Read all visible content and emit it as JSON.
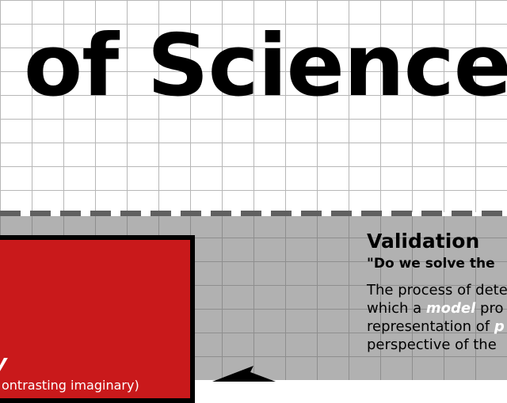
{
  "header": {
    "title": "of Science"
  },
  "red_panel": {
    "letter": "y",
    "subtitle": "ontrasting imaginary)"
  },
  "validation": {
    "title": "Validation",
    "question": "\"Do we solve the",
    "line1": "The process of dete",
    "line2_pre": "which a ",
    "line2_highlight": "model",
    "line2_post": " pro",
    "line3_pre": "representation of ",
    "line3_highlight": "p",
    "line4": "perspective of the"
  },
  "colors": {
    "red_panel": "#c9191b",
    "panel_border": "#000000",
    "bottom_background": "#b1b1b1",
    "dash": "#606060",
    "highlight": "#ffffff"
  },
  "icons": {
    "arrow": "arrow-left-icon"
  }
}
